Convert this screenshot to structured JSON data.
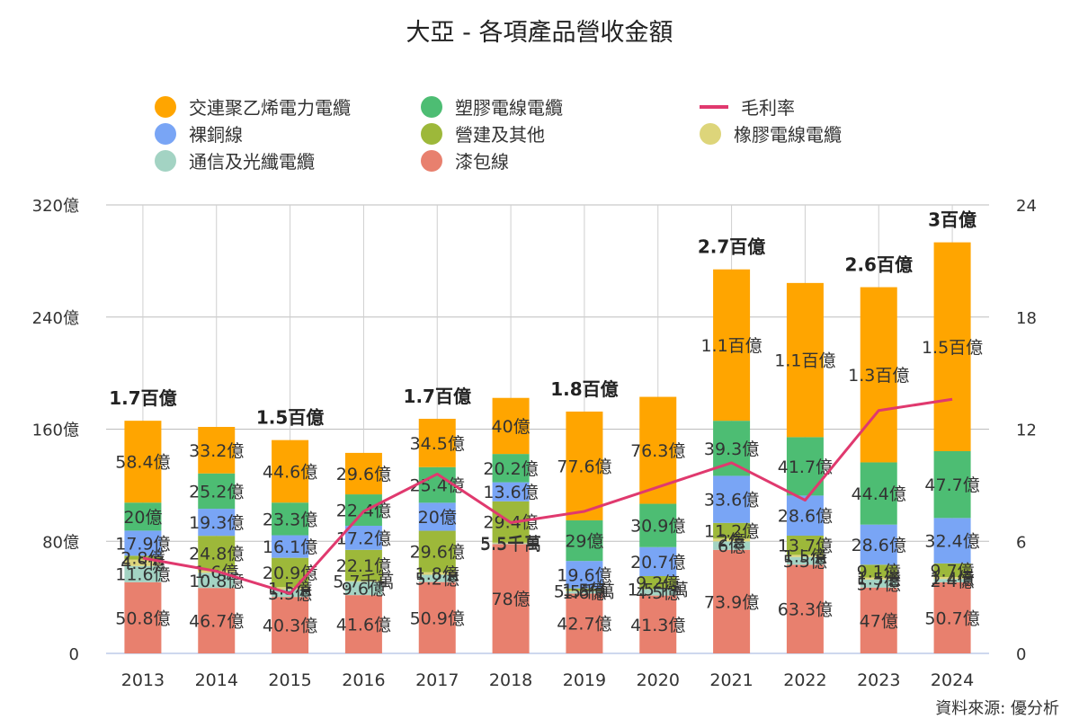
{
  "title": "大亞 - 各項產品營收金額",
  "source": "資料來源: 優分析",
  "chart_data": {
    "type": "bar",
    "stacked": true,
    "categories": [
      "2013",
      "2014",
      "2015",
      "2016",
      "2017",
      "2018",
      "2019",
      "2020",
      "2021",
      "2022",
      "2023",
      "2024"
    ],
    "y_left": {
      "min": 0,
      "max": 320,
      "ticks": [
        0,
        80,
        160,
        240,
        320
      ],
      "tick_labels": [
        "0",
        "80億",
        "160億",
        "240億",
        "320億"
      ]
    },
    "y_right": {
      "min": 0,
      "max": 24,
      "ticks": [
        0,
        6,
        12,
        18,
        24
      ],
      "tick_labels": [
        "0",
        "6",
        "12",
        "18",
        "24"
      ]
    },
    "grid": true,
    "legend_position": "top",
    "series": [
      {
        "name": "漆包線",
        "color": "#E8806E",
        "values": [
          50.8,
          46.7,
          40.3,
          41.6,
          50.9,
          78,
          42.7,
          41.3,
          73.9,
          63.3,
          47,
          50.7
        ],
        "labels": [
          "50.8億",
          "46.7億",
          "40.3億",
          "41.6億",
          "50.9億",
          "78億",
          "42.7億",
          "41.3億",
          "73.9億",
          "63.3億",
          "47億",
          "50.7億"
        ]
      },
      {
        "name": "通信及光纖電纜",
        "color": "#A3D3C3",
        "values": [
          11.6,
          10.8,
          5.5,
          9.6,
          5.2,
          0.55,
          1.6,
          4.5,
          6,
          5.5,
          5.7,
          2.4
        ],
        "labels": [
          "11.6億",
          "10.8億",
          "5.5億",
          "9.6億",
          "5.2億",
          "5.5千萬",
          "1.6億",
          "4.5億",
          "6億",
          "5.5億",
          "5.7億",
          "2.4億"
        ]
      },
      {
        "name": "橡膠電線電纜",
        "color": "#DDD57A",
        "values": [
          4.5,
          1.6,
          1.5,
          0.57,
          1.8,
          0.55,
          0.55,
          0.15,
          2,
          1.5,
          1.5,
          1.4
        ],
        "labels": [
          "4.5億",
          "1.6億",
          "1.5億",
          "5.7千萬",
          "1.8億",
          "5.5千萬",
          "5.5千萬",
          "1.5千萬",
          "2億",
          "1.5億",
          "1.5億",
          "1.4億"
        ]
      },
      {
        "name": "營建及其他",
        "color": "#9DB83A",
        "values": [
          2.8,
          24.8,
          20.9,
          22.1,
          29.6,
          29.4,
          1.5,
          9.2,
          11.2,
          13.7,
          9.1,
          9.7
        ],
        "labels": [
          "2.8億",
          "24.8億",
          "20.9億",
          "22.1億",
          "29.6億",
          "29.4億",
          "1.5億",
          "9.2億",
          "11.2億",
          "13.7億",
          "9.1億",
          "9.7億"
        ]
      },
      {
        "name": "裸銅線",
        "color": "#79A5F5",
        "values": [
          17.9,
          19.3,
          16.1,
          17.2,
          20,
          13.6,
          19.6,
          20.7,
          33.6,
          28.6,
          28.6,
          32.4
        ],
        "labels": [
          "17.9億",
          "19.3億",
          "16.1億",
          "17.2億",
          "20億",
          "13.6億",
          "19.6億",
          "20.7億",
          "33.6億",
          "28.6億",
          "28.6億",
          "32.4億"
        ]
      },
      {
        "name": "塑膠電線電纜",
        "color": "#4DBD73",
        "values": [
          20,
          25.2,
          23.3,
          22.4,
          25.4,
          20.2,
          29,
          30.9,
          39.3,
          41.7,
          44.4,
          47.7
        ],
        "labels": [
          "20億",
          "25.2億",
          "23.3億",
          "22.4億",
          "25.4億",
          "20.2億",
          "29億",
          "30.9億",
          "39.3億",
          "41.7億",
          "44.4億",
          "47.7億"
        ]
      },
      {
        "name": "交連聚乙烯電力電纜",
        "color": "#FFA500",
        "values": [
          58.4,
          33.2,
          44.6,
          29.6,
          34.5,
          40,
          77.6,
          76.3,
          108,
          110,
          125,
          149
        ],
        "labels": [
          "58.4億",
          "33.2億",
          "44.6億",
          "29.6億",
          "34.5億",
          "40億",
          "77.6億",
          "76.3億",
          "1.1百億",
          "1.1百億",
          "1.3百億",
          "1.5百億"
        ]
      }
    ],
    "line_series": {
      "name": "毛利率",
      "color": "#E0396E",
      "axis": "right",
      "values": [
        5.1,
        4.4,
        3.2,
        7.6,
        9.6,
        7.0,
        7.6,
        8.9,
        10.2,
        8.2,
        13.0,
        13.6
      ]
    },
    "totals": [
      "1.7百億",
      "",
      "1.5百億",
      "",
      "1.7百億",
      "",
      "1.8百億",
      "",
      "2.7百億",
      "",
      "2.6百億",
      "3百億"
    ],
    "legend": [
      {
        "name": "交連聚乙烯電力電纜",
        "color": "#FFA500",
        "kind": "dot"
      },
      {
        "name": "塑膠電線電纜",
        "color": "#4DBD73",
        "kind": "dot"
      },
      {
        "name": "毛利率",
        "color": "#E0396E",
        "kind": "line"
      },
      {
        "name": "裸銅線",
        "color": "#79A5F5",
        "kind": "dot"
      },
      {
        "name": "營建及其他",
        "color": "#9DB83A",
        "kind": "dot"
      },
      {
        "name": "橡膠電線電纜",
        "color": "#DDD57A",
        "kind": "dot"
      },
      {
        "name": "通信及光纖電纜",
        "color": "#A3D3C3",
        "kind": "dot"
      },
      {
        "name": "漆包線",
        "color": "#E8806E",
        "kind": "dot"
      }
    ]
  }
}
